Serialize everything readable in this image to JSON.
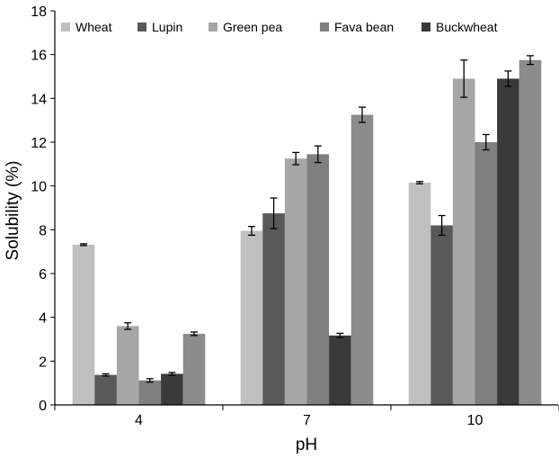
{
  "chart_data": {
    "type": "bar",
    "title": "",
    "xlabel": "pH",
    "ylabel": "Solubility (%)",
    "ylim": [
      0,
      18
    ],
    "yticks": [
      0,
      2,
      4,
      6,
      8,
      10,
      12,
      14,
      16,
      18
    ],
    "categories": [
      "4",
      "7",
      "10"
    ],
    "grid": false,
    "legend_position": "top",
    "series": [
      {
        "name": "Wheat",
        "color": "#c0c0c0",
        "values": [
          7.32,
          7.95,
          10.15
        ],
        "errors": [
          0.04,
          0.2,
          0.05
        ]
      },
      {
        "name": "Lupin",
        "color": "#595959",
        "values": [
          1.37,
          8.75,
          8.2
        ],
        "errors": [
          0.05,
          0.7,
          0.45
        ]
      },
      {
        "name": "Green pea",
        "color": "#a6a6a6",
        "values": [
          3.6,
          11.25,
          14.9
        ],
        "errors": [
          0.15,
          0.28,
          0.85
        ]
      },
      {
        "name": "Fava bean",
        "color": "#7f7f7f",
        "values": [
          1.12,
          11.45,
          12.0
        ],
        "errors": [
          0.08,
          0.38,
          0.35
        ]
      },
      {
        "name": "Buckwheat",
        "color": "#3a3a3a",
        "values": [
          1.42,
          3.17,
          14.9
        ],
        "errors": [
          0.06,
          0.1,
          0.35
        ]
      },
      {
        "name": "",
        "color": "#8c8c8c",
        "values": [
          3.25,
          13.25,
          15.75
        ],
        "errors": [
          0.08,
          0.35,
          0.2
        ]
      }
    ]
  }
}
